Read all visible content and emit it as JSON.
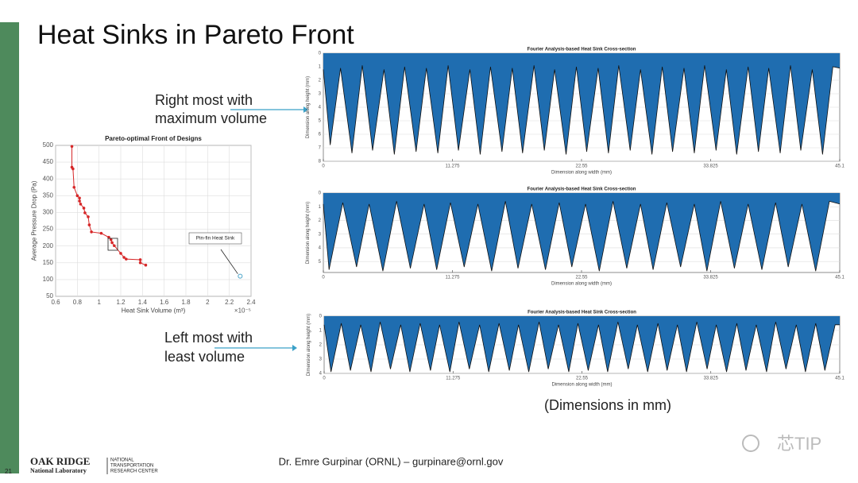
{
  "slide": {
    "title": "Heat Sinks in Pareto Front",
    "callouts": [
      {
        "lines": [
          "Right most with",
          "maximum volume"
        ]
      },
      {
        "lines": [
          "Left most with",
          "least volume"
        ]
      }
    ],
    "note": "(Dimensions in mm)",
    "footer": "Dr. Emre Gurpinar (ORNL) – gurpinare@ornl.gov",
    "page": "21",
    "logo": {
      "name": "OAK RIDGE",
      "lab": "National Laboratory",
      "center": [
        "NATIONAL",
        "TRANSPORTATION",
        "RESEARCH CENTER"
      ]
    },
    "watermark": "芯TIP"
  },
  "chart_data": [
    {
      "type": "scatter",
      "title": "Pareto-optimal Front of Designs",
      "xlabel": "Heat Sink Volume (m³)",
      "x_multiplier": "×10⁻⁵",
      "ylabel": "Average Pressure Drop (Pa)",
      "color": "#d62728",
      "grid": true,
      "x": [
        0.75,
        0.75,
        0.76,
        0.77,
        0.8,
        0.82,
        0.82,
        0.83,
        0.86,
        0.87,
        0.9,
        0.91,
        0.93,
        1.02,
        1.09,
        1.11,
        1.12,
        1.14,
        1.2,
        1.23,
        1.25,
        1.38,
        1.38,
        1.43
      ],
      "values": [
        497,
        435,
        430,
        375,
        350,
        343,
        334,
        325,
        313,
        299,
        287,
        263,
        242,
        238,
        226,
        219,
        210,
        201,
        178,
        166,
        161,
        159,
        150,
        143
      ],
      "annotation": {
        "text": "Pin-fin Heat Sink",
        "x": 2.3,
        "y": 110,
        "color": "#4aa3c8"
      },
      "xlim": [
        0.6,
        2.4
      ],
      "xticks": [
        0.6,
        0.8,
        1,
        1.2,
        1.4,
        1.6,
        1.8,
        2,
        2.2,
        2.4
      ],
      "ylim": [
        50,
        500
      ],
      "yticks": [
        50,
        100,
        150,
        200,
        250,
        300,
        350,
        400,
        450,
        500
      ]
    },
    {
      "type": "area",
      "title": "Fourier Analysis-based Heat Sink Cross-section",
      "xlabel": "Dimension along width (mm)",
      "ylabel": "Dimension along height (mm)",
      "color": "#1f6db0",
      "grid": true,
      "y_direction": "reverse",
      "x": [
        0,
        0.6,
        1.5,
        2.5,
        3.4,
        4.3,
        5.3,
        6.2,
        7.1,
        8.1,
        9.0,
        10.0,
        10.9,
        11.8,
        12.8,
        13.7,
        14.6,
        15.6,
        16.5,
        17.4,
        18.4,
        19.3,
        20.2,
        21.2,
        22.1,
        23.0,
        24.0,
        24.9,
        25.8,
        26.8,
        27.7,
        28.7,
        29.6,
        30.5,
        31.5,
        32.4,
        33.3,
        34.3,
        35.2,
        36.1,
        37.1,
        38.0,
        38.9,
        39.9,
        40.8,
        41.7,
        42.7,
        43.6,
        44.5,
        45.1
      ],
      "values": [
        1.2,
        6.8,
        1.1,
        7.4,
        0.9,
        7.2,
        1.2,
        7.5,
        1.0,
        7.3,
        1.1,
        7.4,
        0.9,
        7.2,
        1.2,
        7.5,
        1.0,
        7.3,
        1.1,
        7.4,
        0.9,
        7.2,
        1.2,
        7.5,
        1.0,
        7.3,
        1.1,
        7.4,
        0.9,
        7.2,
        1.2,
        7.5,
        1.0,
        7.3,
        1.1,
        7.4,
        0.9,
        7.2,
        1.2,
        7.5,
        1.0,
        7.3,
        1.1,
        7.4,
        0.9,
        7.2,
        1.2,
        7.5,
        1.0,
        1.1
      ],
      "xlim": [
        0,
        45.1
      ],
      "xticks": [
        0,
        11.275,
        22.55,
        33.825,
        45.1
      ],
      "ylim": [
        0,
        8
      ],
      "yticks": [
        0,
        1,
        2,
        3,
        4,
        5,
        6,
        7,
        8
      ]
    },
    {
      "type": "area",
      "title": "Fourier Analysis-based Heat Sink Cross-section",
      "xlabel": "Dimension along width (mm)",
      "ylabel": "Dimension along height (mm)",
      "color": "#1f6db0",
      "grid": true,
      "y_direction": "reverse",
      "x": [
        0,
        0.5,
        1.7,
        2.9,
        4.0,
        5.2,
        6.4,
        7.6,
        8.8,
        9.9,
        11.1,
        12.3,
        13.5,
        14.7,
        15.9,
        17.0,
        18.2,
        19.4,
        20.6,
        21.7,
        22.9,
        24.1,
        25.3,
        26.5,
        27.7,
        28.8,
        30.0,
        31.2,
        32.4,
        33.5,
        34.7,
        35.9,
        37.1,
        38.3,
        39.5,
        40.6,
        41.8,
        43.0,
        44.2,
        45.1
      ],
      "values": [
        0.8,
        5.6,
        0.7,
        5.4,
        0.8,
        5.7,
        0.6,
        5.5,
        0.8,
        5.6,
        0.7,
        5.4,
        0.8,
        5.7,
        0.6,
        5.5,
        0.8,
        5.6,
        0.7,
        5.4,
        0.8,
        5.7,
        0.6,
        5.5,
        0.8,
        5.6,
        0.7,
        5.4,
        0.8,
        5.7,
        0.6,
        5.5,
        0.8,
        5.6,
        0.7,
        5.4,
        0.8,
        5.7,
        0.6,
        0.8
      ],
      "xlim": [
        0,
        45.1
      ],
      "xticks": [
        0,
        11.275,
        22.55,
        33.825,
        45.1
      ],
      "ylim": [
        0,
        5.8
      ],
      "yticks": [
        0,
        1,
        2,
        3,
        4,
        5
      ]
    },
    {
      "type": "area",
      "title": "Fourier Analysis-based Heat Sink Cross-section",
      "xlabel": "Dimension along width (mm)",
      "ylabel": "Dimension along height (mm)",
      "color": "#1f6db0",
      "grid": true,
      "y_direction": "reverse",
      "x": [
        0,
        0.6,
        1.5,
        2.3,
        3.2,
        4.1,
        4.9,
        5.8,
        6.7,
        7.5,
        8.4,
        9.3,
        10.1,
        11.0,
        11.8,
        12.7,
        13.6,
        14.4,
        15.3,
        16.2,
        17.0,
        17.9,
        18.8,
        19.6,
        20.5,
        21.4,
        22.2,
        23.1,
        24.0,
        24.8,
        25.7,
        26.6,
        27.4,
        28.3,
        29.2,
        30.0,
        30.9,
        31.7,
        32.6,
        33.5,
        34.3,
        35.2,
        36.1,
        36.9,
        37.8,
        38.7,
        39.5,
        40.4,
        41.3,
        42.1,
        43.0,
        43.8,
        44.7,
        45.1
      ],
      "values": [
        0.6,
        3.9,
        0.5,
        3.8,
        0.6,
        3.9,
        0.4,
        3.7,
        0.6,
        3.9,
        0.5,
        3.8,
        0.6,
        3.9,
        0.4,
        3.7,
        0.6,
        3.9,
        0.5,
        3.8,
        0.6,
        3.9,
        0.4,
        3.7,
        0.6,
        3.9,
        0.5,
        3.8,
        0.6,
        3.9,
        0.4,
        3.7,
        0.6,
        3.9,
        0.5,
        3.8,
        0.6,
        3.9,
        0.4,
        3.7,
        0.6,
        3.9,
        0.5,
        3.8,
        0.6,
        3.9,
        0.4,
        3.7,
        0.6,
        3.9,
        0.5,
        3.8,
        0.6,
        0.6
      ],
      "xlim": [
        0,
        45.1
      ],
      "xticks": [
        0,
        11.275,
        22.55,
        33.825,
        45.1
      ],
      "ylim": [
        0,
        4
      ],
      "yticks": [
        0,
        1,
        2,
        3,
        4
      ]
    }
  ]
}
